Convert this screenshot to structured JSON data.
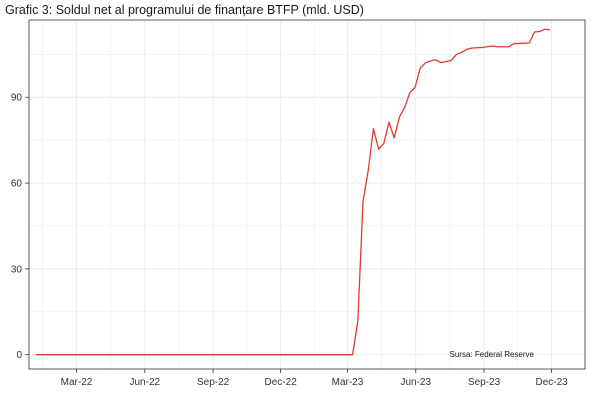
{
  "chart_data": {
    "type": "line",
    "title": "Grafic 3: Soldul net al programului de finanțare BTFP (mld. USD)",
    "source": "Sursa: Federal Reserve",
    "xlabel": "",
    "ylabel": "",
    "ylim": [
      -5,
      117
    ],
    "xlim": [
      "2021-12-27",
      "2024-01-15"
    ],
    "yticks": [
      0,
      30,
      60,
      90
    ],
    "xticks": [
      {
        "date": "2022-03-01",
        "label": "Mar-22"
      },
      {
        "date": "2022-06-01",
        "label": "Jun-22"
      },
      {
        "date": "2022-09-01",
        "label": "Sep-22"
      },
      {
        "date": "2022-12-01",
        "label": "Dec-22"
      },
      {
        "date": "2023-03-01",
        "label": "Mar-23"
      },
      {
        "date": "2023-06-01",
        "label": "Jun-23"
      },
      {
        "date": "2023-09-01",
        "label": "Sep-23"
      },
      {
        "date": "2023-12-01",
        "label": "Dec-23"
      }
    ],
    "grid": true,
    "legend": "none",
    "colors": {
      "line": "#e03a2f",
      "grid": "#ebebeb",
      "axis": "#333333"
    },
    "series": [
      {
        "points": [
          [
            "2022-01-05",
            0
          ],
          [
            "2022-04-01",
            0
          ],
          [
            "2022-08-01",
            0
          ],
          [
            "2022-12-01",
            0
          ],
          [
            "2023-03-08",
            0
          ],
          [
            "2023-03-15",
            11.9
          ],
          [
            "2023-03-22",
            53.7
          ],
          [
            "2023-03-29",
            64.4
          ],
          [
            "2023-04-05",
            79.0
          ],
          [
            "2023-04-12",
            71.8
          ],
          [
            "2023-04-19",
            73.9
          ],
          [
            "2023-04-26",
            81.3
          ],
          [
            "2023-05-03",
            75.8
          ],
          [
            "2023-05-10",
            83.1
          ],
          [
            "2023-05-17",
            86.4
          ],
          [
            "2023-05-24",
            91.6
          ],
          [
            "2023-05-31",
            93.4
          ],
          [
            "2023-06-07",
            100.1
          ],
          [
            "2023-06-14",
            102.0
          ],
          [
            "2023-06-21",
            102.7
          ],
          [
            "2023-06-28",
            103.1
          ],
          [
            "2023-07-05",
            102.1
          ],
          [
            "2023-07-12",
            102.5
          ],
          [
            "2023-07-19",
            102.9
          ],
          [
            "2023-07-26",
            105.0
          ],
          [
            "2023-08-02",
            105.7
          ],
          [
            "2023-08-09",
            106.8
          ],
          [
            "2023-08-16",
            107.2
          ],
          [
            "2023-08-23",
            107.3
          ],
          [
            "2023-08-30",
            107.4
          ],
          [
            "2023-09-06",
            107.7
          ],
          [
            "2023-09-13",
            107.9
          ],
          [
            "2023-09-20",
            107.6
          ],
          [
            "2023-09-27",
            107.7
          ],
          [
            "2023-10-04",
            107.6
          ],
          [
            "2023-10-11",
            108.7
          ],
          [
            "2023-10-18",
            108.8
          ],
          [
            "2023-10-25",
            108.9
          ],
          [
            "2023-11-01",
            109.0
          ],
          [
            "2023-11-08",
            112.8
          ],
          [
            "2023-11-15",
            113.0
          ],
          [
            "2023-11-22",
            113.8
          ],
          [
            "2023-11-29",
            113.5
          ]
        ]
      }
    ]
  }
}
